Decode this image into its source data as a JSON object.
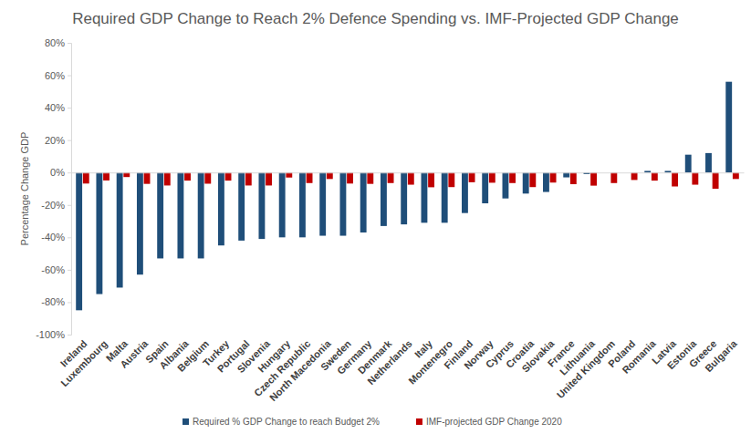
{
  "chart_data": {
    "type": "bar",
    "title": "Required GDP Change to Reach 2% Defence Spending vs. IMF-Projected GDP Change",
    "y_label": "Percentage Change GDP",
    "categories": [
      "Ireland",
      "Luxembourg",
      "Malta",
      "Austria",
      "Spain",
      "Albania",
      "Belgium",
      "Turkey",
      "Portugal",
      "Slovenia",
      "Hungary",
      "Czech Republic",
      "North Macedonia",
      "Sweden",
      "Germany",
      "Denmark",
      "Netherlands",
      "Italy",
      "Montenegro",
      "Finland",
      "Norway",
      "Cyprus",
      "Croatia",
      "Slovakia",
      "France",
      "Lithuania",
      "United Kingdom",
      "Poland",
      "Romania",
      "Latvia",
      "Estonia",
      "Greece",
      "Bulgaria"
    ],
    "series": [
      {
        "name": "Required % GDP Change to reach Budget 2%",
        "color": "#1f4e79",
        "values": [
          -85,
          -75,
          -71,
          -63,
          -53,
          -53,
          -53,
          -45,
          -42,
          -41,
          -40,
          -40,
          -39,
          -39,
          -37,
          -33,
          -32,
          -31,
          -31,
          -25,
          -19,
          -16,
          -13,
          -12,
          -3,
          -1,
          0,
          0,
          1,
          1,
          11,
          12,
          56
        ]
      },
      {
        "name": "IMF-projected GDP Change 2020",
        "color": "#c00000",
        "values": [
          -6.8,
          -4.9,
          -2.8,
          -7,
          -8,
          -5,
          -6.9,
          -5,
          -8,
          -8,
          -3.1,
          -6.5,
          -4,
          -6.8,
          -7,
          -6.5,
          -7.5,
          -9.1,
          -9,
          -6,
          -6.3,
          -6.5,
          -9,
          -6.2,
          -7.2,
          -8.1,
          -6.5,
          -4.6,
          -5,
          -8.6,
          -7.5,
          -10,
          -4
        ]
      }
    ],
    "ylim": [
      -100,
      80
    ],
    "yticks": [
      {
        "value": -100,
        "label": "-100%"
      },
      {
        "value": -80,
        "label": "-80%"
      },
      {
        "value": -60,
        "label": "-60%"
      },
      {
        "value": -40,
        "label": "-40%"
      },
      {
        "value": -20,
        "label": "-20%"
      },
      {
        "value": 0,
        "label": "0%"
      },
      {
        "value": 20,
        "label": "20%"
      },
      {
        "value": 40,
        "label": "40%"
      },
      {
        "value": 60,
        "label": "60%"
      },
      {
        "value": 80,
        "label": "80%"
      }
    ],
    "grid": false,
    "legend": "bottom"
  }
}
